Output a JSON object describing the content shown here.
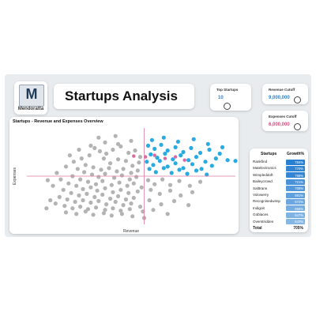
{
  "logo": {
    "text": "Mendoratta"
  },
  "header": {
    "title": "Startups Analysis"
  },
  "kpis": [
    {
      "label": "Top Startups",
      "value": "10",
      "color": "#2f80c8"
    },
    {
      "label": "Revenue Cutoff",
      "value": "9,000,000",
      "color": "#2f80c8"
    },
    {
      "label": "Expenses Cutoff",
      "value": "6,000,000",
      "color": "#d94a7a"
    }
  ],
  "chart": {
    "title": "Startups - Revenue and Expenses Overview",
    "xlabel": "Revenue",
    "ylabel": "Expenses",
    "highlight_color": "#29abe2",
    "base_color": "#b3b3b3",
    "cutoff_color": "#e07aa0"
  },
  "chart_data": {
    "type": "scatter",
    "title": "Startups - Revenue and Expenses Overview",
    "xlabel": "Revenue",
    "ylabel": "Expenses",
    "xlim": [
      0,
      16000000
    ],
    "ylim": [
      0,
      12000000
    ],
    "x_cutoff": 9000000,
    "y_cutoff": 6000000,
    "series": [
      {
        "points": [
          [
            5.2,
            9.5
          ],
          [
            5.6,
            9.1
          ],
          [
            6.1,
            8.8
          ],
          [
            6.6,
            9.3
          ],
          [
            7.2,
            9.7
          ],
          [
            7.8,
            8.9
          ],
          [
            8.3,
            9.2
          ],
          [
            8.7,
            8.4
          ],
          [
            4.8,
            8.6
          ],
          [
            5.9,
            8.2
          ],
          [
            6.4,
            7.6
          ],
          [
            7.0,
            8.1
          ],
          [
            7.6,
            7.9
          ],
          [
            8.1,
            7.3
          ],
          [
            8.6,
            7.7
          ],
          [
            4.5,
            7.4
          ],
          [
            5.1,
            7.1
          ],
          [
            5.7,
            6.8
          ],
          [
            6.3,
            7.0
          ],
          [
            6.9,
            6.6
          ],
          [
            7.4,
            6.9
          ],
          [
            8.0,
            6.4
          ],
          [
            8.5,
            6.7
          ],
          [
            3.9,
            6.9
          ],
          [
            4.4,
            6.5
          ],
          [
            5.0,
            6.2
          ],
          [
            5.5,
            5.9
          ],
          [
            6.0,
            6.3
          ],
          [
            6.7,
            5.8
          ],
          [
            7.3,
            6.1
          ],
          [
            7.9,
            5.6
          ],
          [
            8.4,
            5.9
          ],
          [
            3.5,
            6.0
          ],
          [
            4.1,
            5.6
          ],
          [
            4.7,
            5.3
          ],
          [
            5.3,
            5.0
          ],
          [
            5.8,
            5.4
          ],
          [
            6.5,
            4.9
          ],
          [
            7.1,
            5.2
          ],
          [
            7.7,
            4.8
          ],
          [
            8.2,
            5.1
          ],
          [
            8.8,
            4.6
          ],
          [
            3.2,
            5.1
          ],
          [
            3.8,
            4.8
          ],
          [
            4.3,
            4.4
          ],
          [
            4.9,
            4.6
          ],
          [
            5.4,
            4.2
          ],
          [
            6.0,
            4.5
          ],
          [
            6.6,
            4.0
          ],
          [
            7.2,
            4.3
          ],
          [
            7.8,
            3.9
          ],
          [
            8.5,
            4.1
          ],
          [
            2.8,
            4.3
          ],
          [
            3.4,
            3.9
          ],
          [
            4.0,
            3.6
          ],
          [
            4.6,
            3.8
          ],
          [
            5.2,
            3.4
          ],
          [
            5.8,
            3.7
          ],
          [
            6.4,
            3.2
          ],
          [
            7.0,
            3.5
          ],
          [
            7.6,
            3.1
          ],
          [
            8.2,
            3.3
          ],
          [
            2.5,
            3.4
          ],
          [
            3.1,
            3.1
          ],
          [
            3.7,
            2.8
          ],
          [
            4.3,
            3.0
          ],
          [
            4.9,
            2.7
          ],
          [
            5.5,
            2.9
          ],
          [
            6.1,
            2.5
          ],
          [
            6.8,
            2.8
          ],
          [
            7.4,
            2.4
          ],
          [
            8.0,
            2.6
          ],
          [
            8.7,
            2.2
          ],
          [
            2.2,
            2.6
          ],
          [
            2.9,
            2.3
          ],
          [
            3.5,
            2.0
          ],
          [
            4.1,
            2.2
          ],
          [
            4.7,
            1.9
          ],
          [
            5.3,
            2.1
          ],
          [
            6.0,
            1.8
          ],
          [
            6.6,
            2.0
          ],
          [
            7.2,
            1.7
          ],
          [
            7.9,
            1.9
          ],
          [
            3.0,
            1.5
          ],
          [
            3.8,
            1.3
          ],
          [
            4.5,
            1.6
          ],
          [
            5.1,
            1.2
          ],
          [
            5.9,
            1.4
          ],
          [
            6.5,
            1.1
          ],
          [
            7.3,
            1.3
          ],
          [
            8.1,
            1.0
          ],
          [
            1.8,
            3.0
          ],
          [
            1.5,
            2.0
          ],
          [
            2.0,
            4.8
          ],
          [
            2.6,
            5.6
          ],
          [
            2.3,
            6.4
          ],
          [
            3.0,
            7.2
          ],
          [
            3.6,
            7.8
          ],
          [
            4.2,
            8.2
          ],
          [
            4.9,
            9.8
          ],
          [
            6.0,
            10.2
          ],
          [
            7.0,
            10.0
          ],
          [
            8.0,
            10.4
          ],
          [
            5.5,
            10.8
          ],
          [
            6.8,
            11.0
          ],
          [
            4.0,
            9.3
          ],
          [
            3.3,
            8.6
          ],
          [
            1.6,
            5.5
          ],
          [
            9.0,
            0.8
          ],
          [
            8.9,
            1.6
          ]
        ],
        "color": "#b3b3b3"
      },
      {
        "points": [
          [
            9.3,
            9.8
          ],
          [
            9.8,
            9.4
          ],
          [
            10.3,
            9.9
          ],
          [
            10.8,
            9.2
          ],
          [
            11.4,
            9.6
          ],
          [
            12.0,
            9.0
          ],
          [
            12.6,
            9.5
          ],
          [
            13.3,
            8.9
          ],
          [
            14.0,
            9.3
          ],
          [
            14.8,
            8.8
          ],
          [
            9.5,
            8.7
          ],
          [
            10.0,
            8.3
          ],
          [
            10.6,
            8.8
          ],
          [
            11.2,
            8.1
          ],
          [
            11.8,
            8.6
          ],
          [
            12.4,
            8.0
          ],
          [
            13.0,
            8.4
          ],
          [
            13.7,
            7.8
          ],
          [
            14.5,
            8.2
          ],
          [
            15.4,
            8.0
          ],
          [
            9.2,
            7.8
          ],
          [
            9.7,
            7.4
          ],
          [
            10.2,
            7.9
          ],
          [
            10.8,
            7.2
          ],
          [
            11.4,
            7.6
          ],
          [
            12.0,
            7.0
          ],
          [
            12.7,
            7.5
          ],
          [
            13.4,
            6.9
          ],
          [
            14.2,
            7.3
          ],
          [
            9.4,
            6.9
          ],
          [
            9.9,
            6.5
          ],
          [
            10.5,
            7.0
          ],
          [
            11.1,
            6.4
          ],
          [
            11.7,
            6.8
          ],
          [
            12.3,
            6.3
          ],
          [
            13.0,
            6.7
          ],
          [
            13.8,
            6.2
          ],
          [
            9.6,
            10.5
          ],
          [
            10.5,
            10.8
          ],
          [
            11.6,
            10.3
          ],
          [
            12.8,
            10.6
          ],
          [
            13.9,
            10.0
          ],
          [
            16.0,
            7.9
          ],
          [
            15.0,
            9.6
          ]
        ],
        "color": "#29abe2"
      },
      {
        "points": [
          [
            9.3,
            5.5
          ],
          [
            9.8,
            5.0
          ],
          [
            10.4,
            5.6
          ],
          [
            11.0,
            4.9
          ],
          [
            11.7,
            5.4
          ],
          [
            12.5,
            4.8
          ],
          [
            13.3,
            5.3
          ],
          [
            9.5,
            4.3
          ],
          [
            10.2,
            3.8
          ],
          [
            11.0,
            4.2
          ],
          [
            11.8,
            3.6
          ],
          [
            12.7,
            4.0
          ],
          [
            9.4,
            3.0
          ],
          [
            10.3,
            2.5
          ],
          [
            11.3,
            2.9
          ],
          [
            12.4,
            2.4
          ],
          [
            9.7,
            1.8
          ],
          [
            10.8,
            1.3
          ]
        ],
        "color": "#b3b3b3"
      },
      {
        "points": [
          [
            8.2,
            8.5
          ],
          [
            9.1,
            8.4
          ],
          [
            9.8,
            8.6
          ],
          [
            10.6,
            8.2
          ],
          [
            11.4,
            8.4
          ],
          [
            12.1,
            8.0
          ]
        ],
        "color": "#d96aa0"
      }
    ]
  },
  "table": {
    "headers": [
      "Startups",
      "Growth%"
    ],
    "rows": [
      {
        "name": "Rankfind",
        "value": "784%",
        "fill": 1.0
      },
      {
        "name": "Matelectronics",
        "value": "770%",
        "fill": 0.95
      },
      {
        "name": "Wimpleddoft",
        "value": "768%",
        "fill": 0.93
      },
      {
        "name": "Baileycrowd",
        "value": "721%",
        "fill": 0.78
      },
      {
        "name": "Salttrans",
        "value": "708%",
        "fill": 0.7
      },
      {
        "name": "Volowerry",
        "value": "691%",
        "fill": 0.62
      },
      {
        "name": "Recognisedwimp",
        "value": "672%",
        "fill": 0.52
      },
      {
        "name": "Indigoit",
        "value": "656%",
        "fill": 0.44
      },
      {
        "name": "Goblaces",
        "value": "647%",
        "fill": 0.38
      },
      {
        "name": "Overstridden",
        "value": "643%",
        "fill": 0.34
      }
    ],
    "total_label": "Total",
    "total_value": "705%"
  }
}
